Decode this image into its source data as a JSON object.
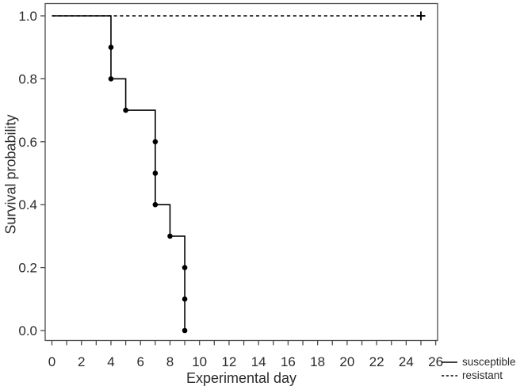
{
  "chart_data": {
    "type": "line",
    "subtype": "kaplan-meier-step-survival",
    "title": "",
    "xlabel": "Experimental day",
    "ylabel": "Survival probability",
    "xlim": [
      0,
      26
    ],
    "ylim": [
      0.0,
      1.0
    ],
    "grid": false,
    "x_minor_tick_step": 1,
    "x_tick_values": [
      0,
      2,
      4,
      6,
      8,
      10,
      12,
      14,
      16,
      18,
      20,
      22,
      24,
      26
    ],
    "x_tick_labels": [
      "0",
      "2",
      "4",
      "6",
      "8",
      "10",
      "12",
      "14",
      "16",
      "18",
      "20",
      "22",
      "24",
      "26"
    ],
    "y_tick_values": [
      0.0,
      0.2,
      0.4,
      0.6,
      0.8,
      1.0
    ],
    "y_tick_labels": [
      "0.0",
      "0.2",
      "0.4",
      "0.6",
      "0.8",
      "1.0"
    ],
    "series": [
      {
        "name": "susceptible",
        "line_style": "solid",
        "color": "#000000",
        "marker": "filled-circle",
        "step_path": [
          [
            0,
            1.0
          ],
          [
            4,
            1.0
          ],
          [
            4,
            0.9
          ],
          [
            4,
            0.8
          ],
          [
            5,
            0.8
          ],
          [
            5,
            0.7
          ],
          [
            7,
            0.7
          ],
          [
            7,
            0.6
          ],
          [
            7,
            0.5
          ],
          [
            7,
            0.4
          ],
          [
            8,
            0.4
          ],
          [
            8,
            0.3
          ],
          [
            9,
            0.3
          ],
          [
            9,
            0.2
          ],
          [
            9,
            0.1
          ],
          [
            9,
            0.0
          ]
        ],
        "event_markers": [
          [
            4,
            0.9
          ],
          [
            4,
            0.8
          ],
          [
            5,
            0.7
          ],
          [
            7,
            0.6
          ],
          [
            7,
            0.5
          ],
          [
            7,
            0.4
          ],
          [
            8,
            0.3
          ],
          [
            9,
            0.2
          ],
          [
            9,
            0.1
          ],
          [
            9,
            0.0
          ]
        ],
        "censor_markers": []
      },
      {
        "name": "resistant",
        "line_style": "dashed",
        "color": "#000000",
        "marker": "plus",
        "step_path": [
          [
            0,
            1.0
          ],
          [
            25,
            1.0
          ]
        ],
        "event_markers": [],
        "censor_markers": [
          [
            25,
            1.0
          ]
        ]
      }
    ],
    "legend": [
      {
        "label": "susceptible",
        "style": "solid"
      },
      {
        "label": "resistant",
        "style": "dashed"
      }
    ],
    "legend_position": "bottom-right-outside"
  },
  "colors": {
    "curve": "#000000",
    "frame": "#4a4a4a",
    "text": "#2b2b2b",
    "background": "#ffffff"
  }
}
